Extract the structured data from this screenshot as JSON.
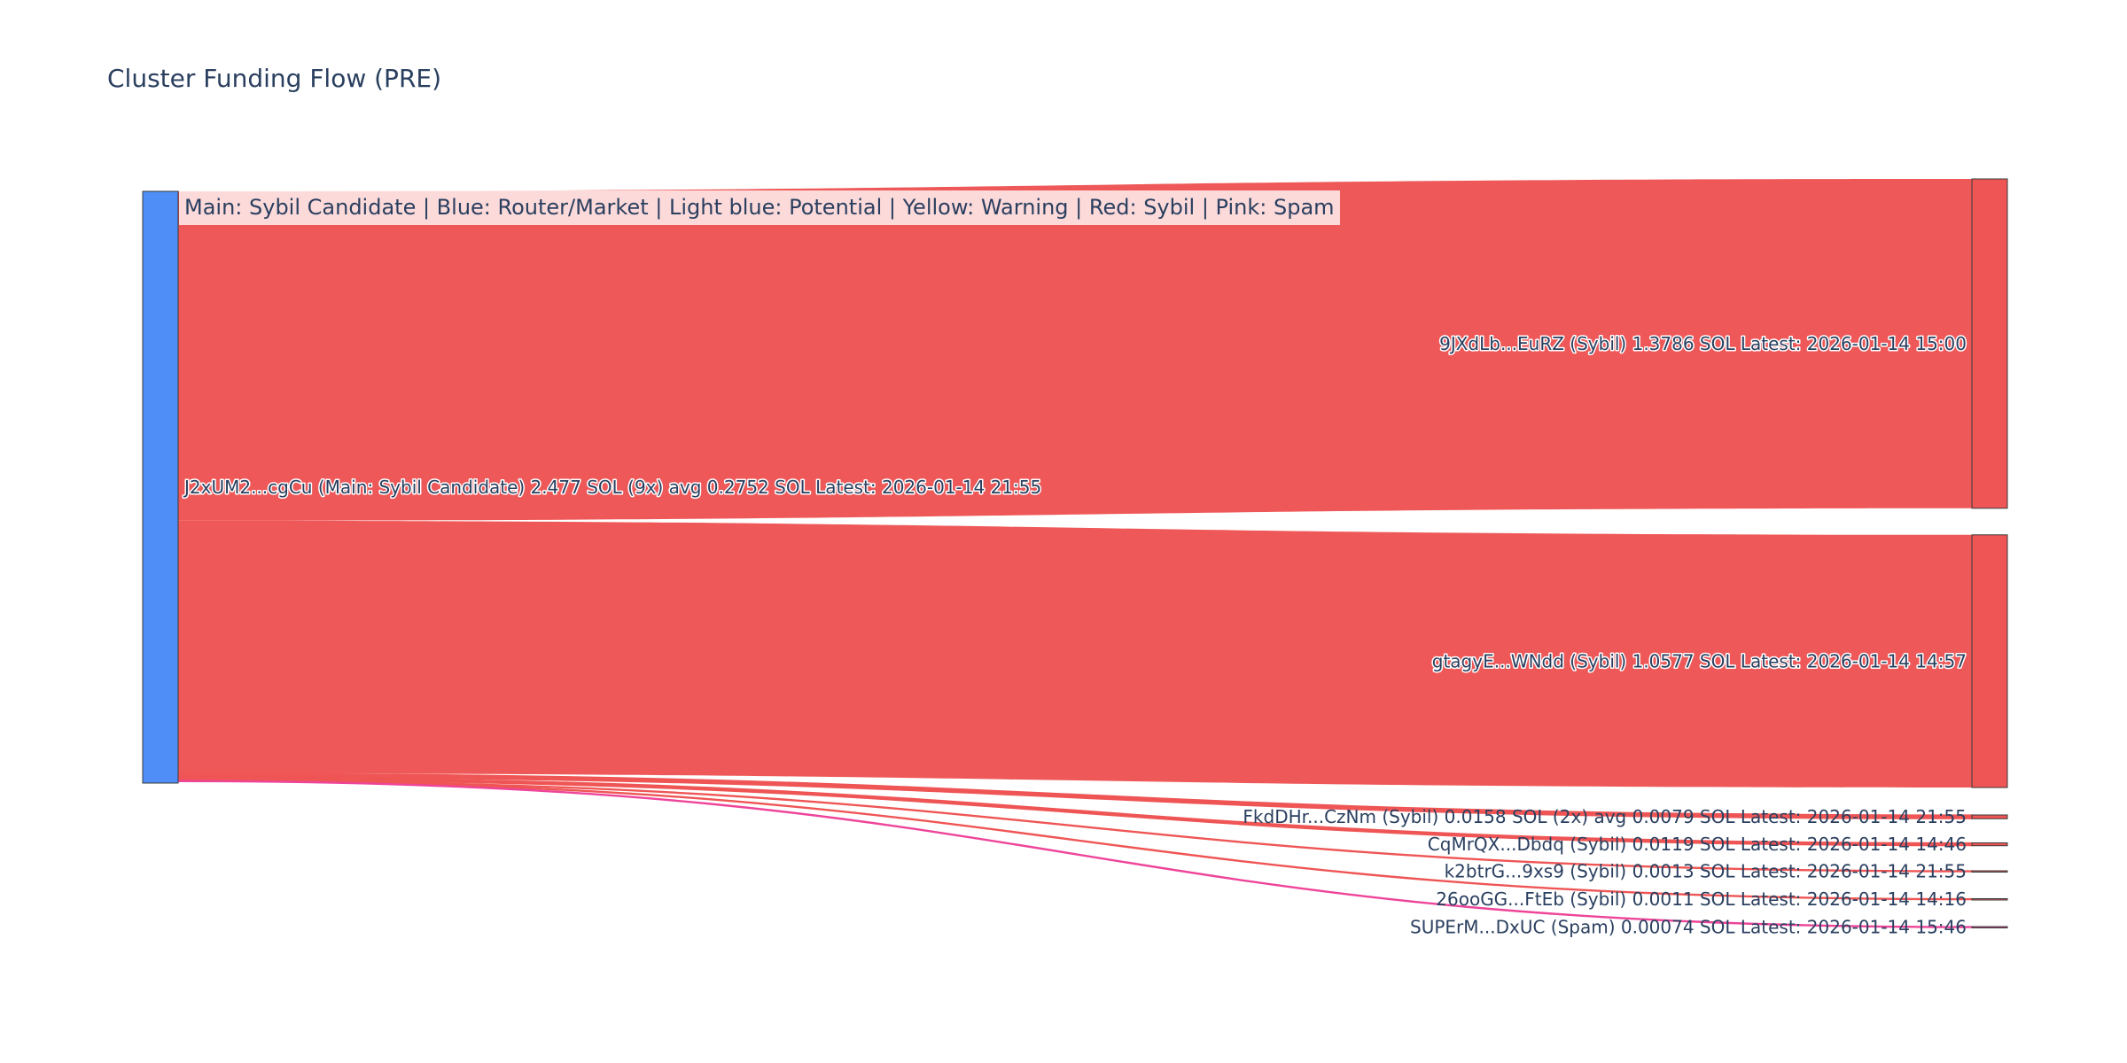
{
  "title": "Cluster Funding Flow (PRE)",
  "legend_text": "Main: Sybil Candidate  |  Blue: Router/Market | Light blue: Potential | Yellow: Warning | Red: Sybil | Pink: Spam",
  "colors": {
    "main_node": "#4f8ef7",
    "sybil_link": "#ef5555",
    "spam_link": "#ee4499",
    "node_border": "#3a3a3a",
    "text": "#2a3f5f"
  },
  "chart_data": {
    "type": "sankey",
    "unit": "SOL",
    "source": {
      "label": "J2xUM2...cgCu (Main: Sybil Candidate) 2.477 SOL (9x) avg 0.2752 SOL Latest: 2026-01-14 21:55",
      "value": 2.477,
      "color": "#4f8ef7"
    },
    "targets": [
      {
        "label": "9JXdLb...EuRZ (Sybil) 1.3786 SOL Latest: 2026-01-14 15:00",
        "value": 1.3786,
        "category": "Sybil",
        "color": "#ef5555"
      },
      {
        "label": "gtagyE...WNdd (Sybil) 1.0577 SOL Latest: 2026-01-14 14:57",
        "value": 1.0577,
        "category": "Sybil",
        "color": "#ef5555"
      },
      {
        "label": "FkdDHr...CzNm (Sybil) 0.0158 SOL (2x) avg 0.0079 SOL Latest: 2026-01-14 21:55",
        "value": 0.0158,
        "category": "Sybil",
        "color": "#ef5555"
      },
      {
        "label": "CqMrQX...Dbdq (Sybil) 0.0119 SOL Latest: 2026-01-14 14:46",
        "value": 0.0119,
        "category": "Sybil",
        "color": "#ef5555"
      },
      {
        "label": "k2btrG...9xs9 (Sybil) 0.0013 SOL Latest: 2026-01-14 21:55",
        "value": 0.0013,
        "category": "Sybil",
        "color": "#ef5555"
      },
      {
        "label": "26ooGG...FtEb (Sybil) 0.0011 SOL Latest: 2026-01-14 14:16",
        "value": 0.0011,
        "category": "Sybil",
        "color": "#ef5555"
      },
      {
        "label": "SUPErM...DxUC (Spam) 0.00074 SOL Latest: 2026-01-14 15:46",
        "value": 0.00074,
        "category": "Spam",
        "color": "#ee4499"
      }
    ]
  }
}
